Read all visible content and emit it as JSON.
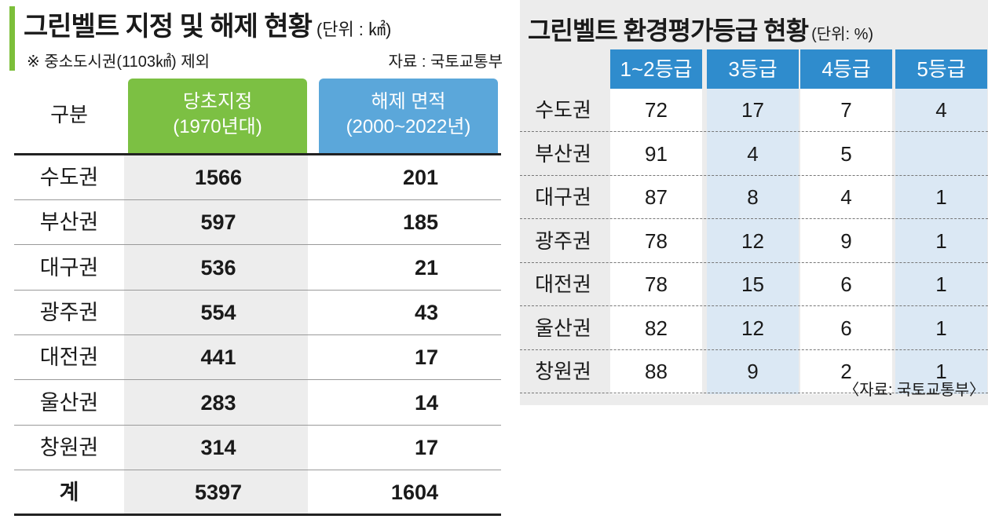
{
  "chart_data": [
    {
      "type": "table",
      "title": "그린벨트 지정 및 해제 현황",
      "unit": "(단위 : ㎢)",
      "note": "※ 중소도시권(1103㎢) 제외",
      "source": "자료 : 국토교통부",
      "columns": [
        "구분",
        "당초지정 (1970년대)",
        "해제 면적 (2000~2022년)"
      ],
      "col1_lines": [
        "당초지정",
        "(1970년대)"
      ],
      "col2_lines": [
        "해제 면적",
        "(2000~2022년)"
      ],
      "rows": [
        {
          "region": "수도권",
          "designated": 1566,
          "released": 201
        },
        {
          "region": "부산권",
          "designated": 597,
          "released": 185
        },
        {
          "region": "대구권",
          "designated": 536,
          "released": 21
        },
        {
          "region": "광주권",
          "designated": 554,
          "released": 43
        },
        {
          "region": "대전권",
          "designated": 441,
          "released": 17
        },
        {
          "region": "울산권",
          "designated": 283,
          "released": 14
        },
        {
          "region": "창원권",
          "designated": 314,
          "released": 17
        }
      ],
      "total": {
        "region": "계",
        "designated": 5397,
        "released": 1604
      }
    },
    {
      "type": "table",
      "title": "그린벨트 환경평가등급 현황",
      "unit": "(단위: %)",
      "source": "〈자료: 국토교통부〉",
      "columns": [
        "1~2등급",
        "3등급",
        "4등급",
        "5등급"
      ],
      "rows": [
        {
          "region": "수도권",
          "values": [
            "72",
            "17",
            "7",
            "4"
          ]
        },
        {
          "region": "부산권",
          "values": [
            "91",
            "4",
            "5",
            ""
          ]
        },
        {
          "region": "대구권",
          "values": [
            "87",
            "8",
            "4",
            "1"
          ]
        },
        {
          "region": "광주권",
          "values": [
            "78",
            "12",
            "9",
            "1"
          ]
        },
        {
          "region": "대전권",
          "values": [
            "78",
            "15",
            "6",
            "1"
          ]
        },
        {
          "region": "울산권",
          "values": [
            "82",
            "12",
            "6",
            "1"
          ]
        },
        {
          "region": "창원권",
          "values": [
            "88",
            "9",
            "2",
            "1"
          ]
        }
      ]
    }
  ],
  "colors": {
    "green": "#7cc043",
    "blue_header": "#5ba7da",
    "right_header": "#2f8ccd",
    "accent": "#7cbf3a"
  }
}
